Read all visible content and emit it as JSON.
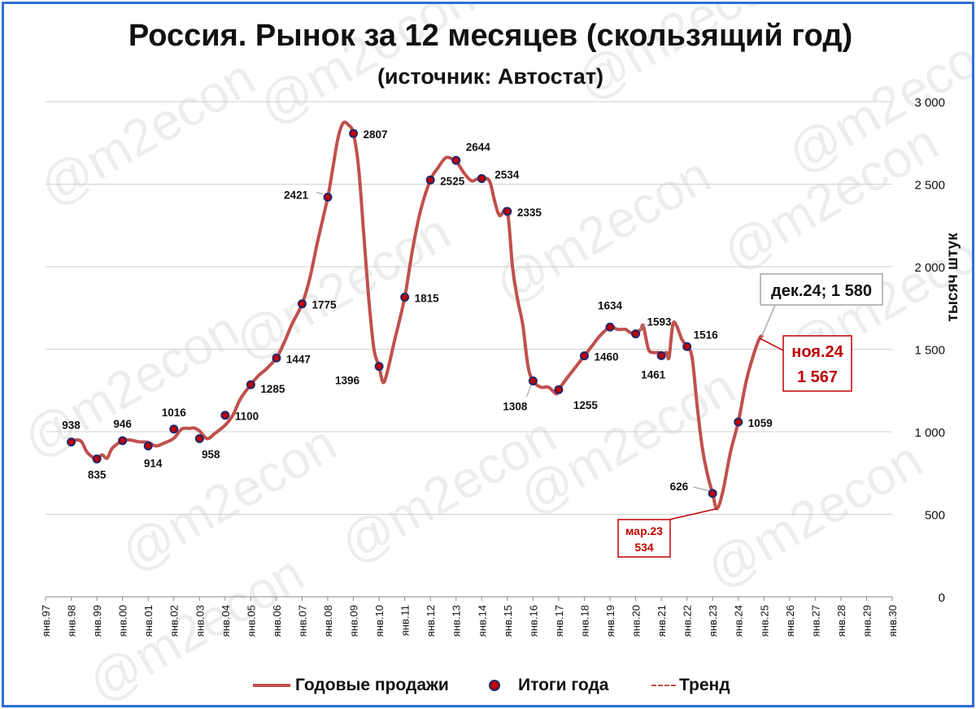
{
  "title": "Россия. Рынок за 12 месяцев (скользящий год)",
  "subtitle": "(источник: Автостат)",
  "watermark": "@m2econ",
  "colors": {
    "line": "#c0504d",
    "dot_fill": "#c00000",
    "dot_stroke": "#1f2a6e",
    "frame": "#2e6fd6",
    "callout_red": "#c00000"
  },
  "legend": {
    "sales": "Годовые продажи",
    "totals": "Итоги года",
    "trend": "Тренд"
  },
  "chart_data": {
    "type": "line",
    "title": "Россия. Рынок за 12 месяцев (скользящий год)",
    "subtitle": "(источник: Автостат)",
    "ylabel": "тысяч штук",
    "ylim": [
      0,
      3000
    ],
    "yticks": [
      0,
      500,
      1000,
      1500,
      2000,
      2500,
      3000
    ],
    "ytick_labels": [
      "0",
      "500",
      "1 000",
      "1 500",
      "2 000",
      "2 500",
      "3 000"
    ],
    "xlim": [
      1997,
      2030
    ],
    "xtick_labels": [
      "янв.97",
      "янв.98",
      "янв.99",
      "янв.00",
      "янв.01",
      "янв.02",
      "янв.03",
      "янв.04",
      "янв.05",
      "янв.06",
      "янв.07",
      "янв.08",
      "янв.09",
      "янв.10",
      "янв.11",
      "янв.12",
      "янв.13",
      "янв.14",
      "янв.15",
      "янв.16",
      "янв.17",
      "янв.18",
      "янв.19",
      "янв.20",
      "янв.21",
      "янв.22",
      "янв.23",
      "янв.24",
      "янв.25",
      "янв.26",
      "янв.27",
      "янв.28",
      "янв.29",
      "янв.30"
    ],
    "grid": true,
    "legend_position": "bottom",
    "series": [
      {
        "name": "Годовые продажи",
        "style": "line",
        "x": [
          1998.0,
          1998.2,
          1998.4,
          1998.6,
          1998.8,
          1999.0,
          1999.2,
          1999.4,
          1999.6,
          2000.0,
          2000.3,
          2000.6,
          2001.0,
          2001.3,
          2001.6,
          2002.0,
          2002.3,
          2002.6,
          2002.8,
          2003.0,
          2003.3,
          2003.6,
          2004.0,
          2004.3,
          2004.6,
          2005.0,
          2005.3,
          2005.6,
          2006.0,
          2006.3,
          2006.6,
          2007.0,
          2007.3,
          2007.6,
          2008.0,
          2008.2,
          2008.4,
          2008.6,
          2008.8,
          2009.0,
          2009.2,
          2009.4,
          2009.6,
          2009.8,
          2010.0,
          2010.15,
          2010.3,
          2010.6,
          2011.0,
          2011.3,
          2011.6,
          2012.0,
          2012.3,
          2012.6,
          2012.9,
          2013.0,
          2013.3,
          2013.6,
          2013.8,
          2014.0,
          2014.3,
          2014.5,
          2014.7,
          2015.0,
          2015.2,
          2015.4,
          2015.6,
          2015.8,
          2016.0,
          2016.3,
          2016.6,
          2016.9,
          2017.0,
          2017.3,
          2017.6,
          2018.0,
          2018.3,
          2018.6,
          2019.0,
          2019.3,
          2019.6,
          2019.8,
          2020.0,
          2020.2,
          2020.3,
          2020.5,
          2020.7,
          2020.9,
          2021.0,
          2021.2,
          2021.3,
          2021.45,
          2021.6,
          2021.8,
          2022.0,
          2022.2,
          2022.4,
          2022.6,
          2022.8,
          2023.0,
          2023.17,
          2023.4,
          2023.7,
          2024.0,
          2024.3,
          2024.6,
          2024.83,
          2024.92
        ],
        "y": [
          938,
          950,
          940,
          880,
          850,
          835,
          860,
          840,
          900,
          946,
          950,
          940,
          935,
          914,
          930,
          960,
          1016,
          1020,
          1022,
          1005,
          958,
          990,
          1040,
          1100,
          1200,
          1285,
          1340,
          1380,
          1447,
          1540,
          1650,
          1775,
          1930,
          2150,
          2421,
          2600,
          2780,
          2870,
          2860,
          2807,
          2600,
          2200,
          1800,
          1500,
          1396,
          1300,
          1350,
          1550,
          1815,
          2100,
          2330,
          2525,
          2600,
          2660,
          2650,
          2644,
          2570,
          2520,
          2530,
          2534,
          2520,
          2400,
          2310,
          2335,
          2000,
          1800,
          1650,
          1400,
          1308,
          1270,
          1270,
          1230,
          1255,
          1320,
          1380,
          1460,
          1520,
          1580,
          1634,
          1620,
          1620,
          1600,
          1600,
          1620,
          1640,
          1500,
          1480,
          1480,
          1461,
          1480,
          1450,
          1650,
          1640,
          1560,
          1516,
          1450,
          1150,
          900,
          740,
          626,
          534,
          640,
          880,
          1059,
          1300,
          1470,
          1567,
          1580
        ]
      },
      {
        "name": "Итоги года",
        "style": "markers",
        "x": [
          1998,
          1999,
          2000,
          2001,
          2002,
          2003,
          2004,
          2005,
          2006,
          2007,
          2008,
          2009,
          2010,
          2011,
          2012,
          2013,
          2014,
          2015,
          2016,
          2017,
          2018,
          2019,
          2020,
          2021,
          2022,
          2023,
          2024
        ],
        "y": [
          938,
          835,
          946,
          914,
          1016,
          958,
          1100,
          1285,
          1447,
          1775,
          2421,
          2807,
          1396,
          1815,
          2525,
          2644,
          2534,
          2335,
          1308,
          1255,
          1460,
          1634,
          1593,
          1461,
          1516,
          626,
          1059
        ],
        "labels": [
          "938",
          "835",
          "946",
          "914",
          "1016",
          "958",
          "1100",
          "1285",
          "1447",
          "1775",
          "2421",
          "2807",
          "1396",
          "1815",
          "2525",
          "2644",
          "2534",
          "2335",
          "1308",
          "1255",
          "1460",
          "1634",
          "1593",
          "1461",
          "1516",
          "626",
          "1059"
        ]
      },
      {
        "name": "Тренд",
        "style": "dashed",
        "x": [],
        "y": []
      }
    ],
    "annotations": [
      {
        "text": "дек.24; 1 580",
        "x": 2024.92,
        "y": 1580,
        "style": "box-grey"
      },
      {
        "text_line1": "ноя.24",
        "text_line2": "1 567",
        "x": 2024.83,
        "y": 1567,
        "style": "box-red"
      },
      {
        "text_line1": "мар.23",
        "text_line2": "534",
        "x": 2023.17,
        "y": 534,
        "style": "box-red-small"
      }
    ]
  }
}
